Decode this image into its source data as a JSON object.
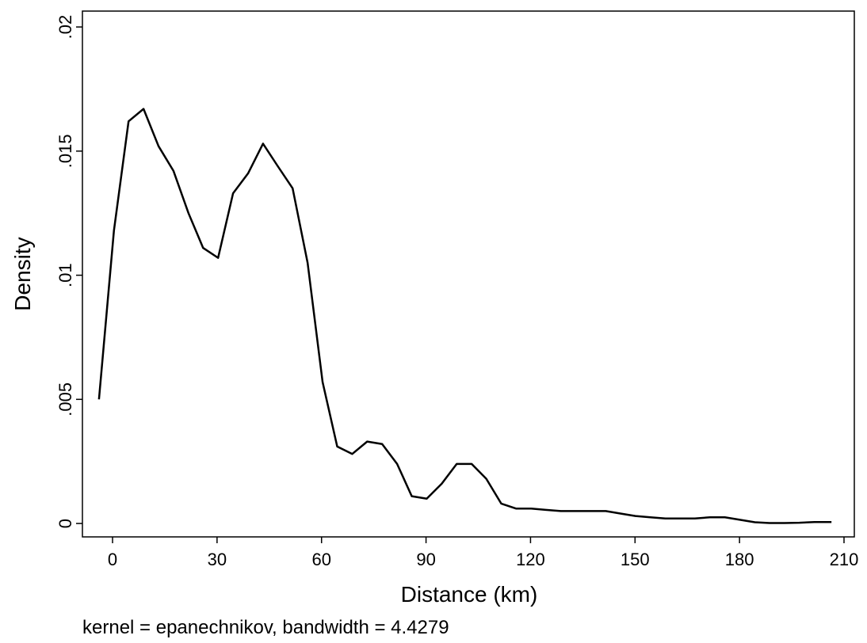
{
  "chart_data": {
    "type": "line",
    "x_label": "Distance (km)",
    "y_label": "Density",
    "note": "kernel = epanechnikov, bandwidth = 4.4279",
    "x": [
      -3.9,
      0.4,
      4.6,
      8.9,
      13.2,
      17.5,
      21.8,
      26.0,
      30.3,
      34.6,
      38.9,
      43.2,
      47.4,
      51.7,
      56.0,
      60.3,
      64.5,
      68.8,
      73.1,
      77.4,
      81.7,
      85.9,
      90.2,
      94.5,
      98.8,
      103.1,
      107.3,
      111.6,
      115.9,
      120.2,
      124.4,
      128.7,
      133.0,
      137.3,
      141.6,
      145.8,
      150.1,
      154.4,
      158.7,
      163.0,
      167.2,
      171.5,
      175.8,
      180.1,
      184.4,
      188.6,
      192.9,
      197.2,
      201.5,
      206.4
    ],
    "series": [
      {
        "color": "#000000",
        "values": [
          0.005,
          0.0118,
          0.0162,
          0.0167,
          0.0152,
          0.0142,
          0.0125,
          0.0111,
          0.0107,
          0.0133,
          0.0141,
          0.0153,
          0.0144,
          0.0135,
          0.0105,
          0.0057,
          0.0031,
          0.0028,
          0.0033,
          0.0032,
          0.0024,
          0.0011,
          0.001,
          0.0016,
          0.0024,
          0.0024,
          0.0018,
          0.0008,
          0.0006,
          0.0006,
          0.00055,
          0.0005,
          0.0005,
          0.0005,
          0.0005,
          0.0004,
          0.0003,
          0.00025,
          0.0002,
          0.0002,
          0.0002,
          0.00025,
          0.00025,
          0.00015,
          5e-05,
          2e-05,
          2e-05,
          3e-05,
          6e-05,
          6e-05
        ]
      }
    ],
    "xlim": [
      -8.65,
      212.96
    ],
    "ylim": [
      -0.00054,
      0.02064
    ],
    "xticks": [
      0,
      30,
      60,
      90,
      120,
      150,
      180,
      210
    ],
    "yticks": [
      0,
      {
        "value": 0.005,
        "label": ".005"
      },
      {
        "value": 0.01,
        "label": ".01"
      },
      {
        "value": 0.015,
        "label": ".015"
      },
      {
        "value": 0.02,
        "label": ".02"
      }
    ]
  }
}
